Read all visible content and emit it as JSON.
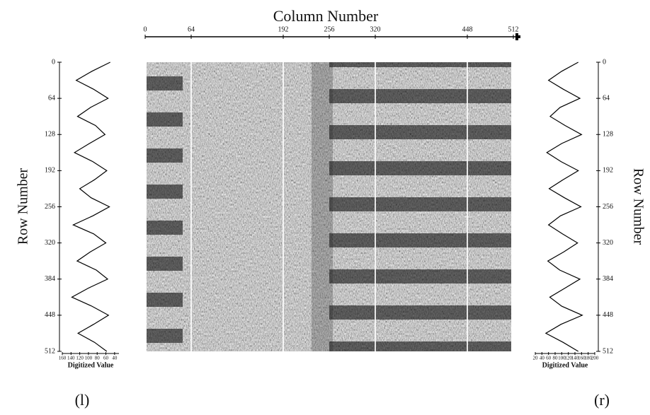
{
  "chart_data": [
    {
      "type": "image",
      "xlabel": "Column Number",
      "xlim": [
        0,
        512
      ],
      "xticks": [
        0,
        64,
        192,
        256,
        320,
        448,
        512
      ]
    },
    {
      "type": "line",
      "label": "(l)",
      "xlabel": "Row Number",
      "ylabel": "Digitized Value",
      "x": [
        0,
        16,
        32,
        48,
        64,
        80,
        96,
        112,
        128,
        144,
        160,
        176,
        192,
        208,
        224,
        240,
        256,
        272,
        288,
        304,
        320,
        336,
        352,
        368,
        384,
        400,
        416,
        432,
        448,
        464,
        480,
        496,
        512
      ],
      "values": [
        50,
        92,
        128,
        88,
        55,
        95,
        125,
        84,
        62,
        98,
        132,
        90,
        58,
        86,
        120,
        94,
        52,
        90,
        135,
        88,
        60,
        96,
        126,
        82,
        56,
        100,
        138,
        92,
        54,
        88,
        124,
        86,
        58
      ],
      "xlim": [
        0,
        512
      ],
      "xticks": [
        0,
        64,
        128,
        192,
        256,
        320,
        384,
        448,
        512
      ],
      "ylim": [
        160,
        30
      ],
      "yticks": [
        160,
        140,
        120,
        100,
        80,
        60,
        40
      ]
    },
    {
      "type": "line",
      "label": "(r)",
      "xlabel": "Row Number",
      "ylabel": "Digitized Value",
      "x": [
        0,
        16,
        32,
        48,
        64,
        80,
        96,
        112,
        128,
        144,
        160,
        176,
        192,
        208,
        224,
        240,
        256,
        272,
        288,
        304,
        320,
        336,
        352,
        368,
        384,
        400,
        416,
        432,
        448,
        464,
        480,
        496,
        512
      ],
      "values": [
        150,
        100,
        60,
        105,
        155,
        95,
        65,
        110,
        160,
        100,
        55,
        98,
        150,
        104,
        62,
        108,
        158,
        96,
        60,
        102,
        148,
        106,
        58,
        94,
        155,
        110,
        64,
        100,
        162,
        98,
        52,
        104,
        150
      ],
      "xlim": [
        0,
        512
      ],
      "xticks": [
        0,
        64,
        128,
        192,
        256,
        320,
        384,
        448,
        512
      ],
      "ylim": [
        20,
        200
      ],
      "yticks": [
        20,
        40,
        60,
        80,
        100,
        120,
        140,
        160,
        180,
        200
      ]
    }
  ]
}
